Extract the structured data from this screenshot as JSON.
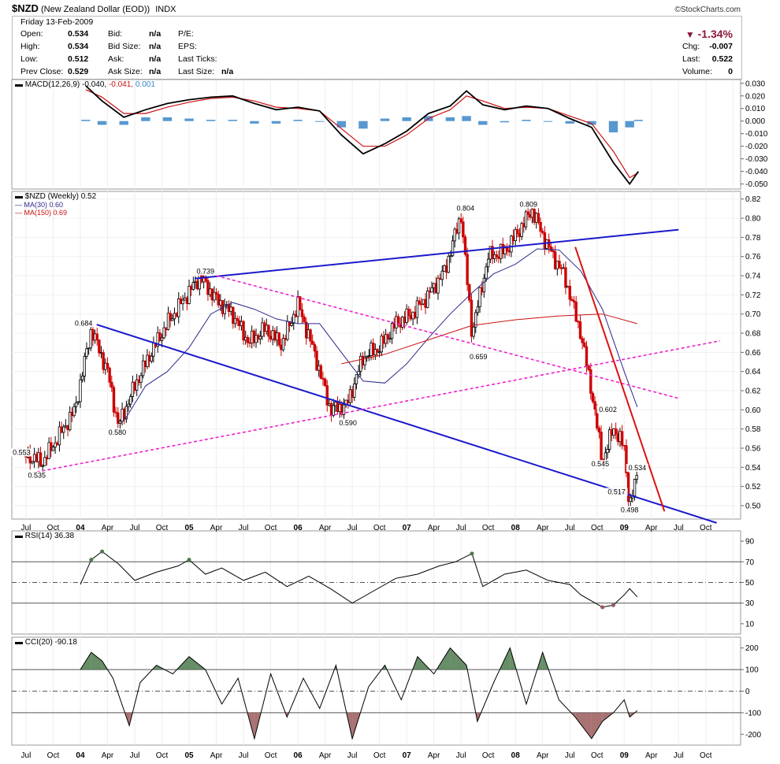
{
  "header": {
    "symbol": "$NZD",
    "name": "(New Zealand Dollar (EOD))",
    "exchange": "INDX",
    "brand": "©StockCharts.com",
    "date_line": "Friday   13-Feb-2009",
    "left_fields": [
      {
        "label": "Open:",
        "value": "0.534"
      },
      {
        "label": "High:",
        "value": "0.534"
      },
      {
        "label": "Low:",
        "value": "0.512"
      },
      {
        "label": "Prev Close:",
        "value": "0.529"
      }
    ],
    "mid_fields": [
      {
        "label": "Bid:",
        "value": "n/a"
      },
      {
        "label": "Bid Size:",
        "value": "n/a"
      },
      {
        "label": "Ask:",
        "value": "n/a"
      },
      {
        "label": "Ask Size:",
        "value": "n/a"
      }
    ],
    "right_labels": [
      "P/E:",
      "EPS:",
      "Last Ticks:",
      "Last Size:"
    ],
    "last_size_value": "n/a",
    "change_pct": "-1.34%",
    "chg_label": "Chg:",
    "chg_value": "-0.007",
    "last_label": "Last:",
    "last_value": "0.522",
    "volume_label": "Volume:",
    "volume_value": "0",
    "down_color": "#8b1a3a"
  },
  "chart_data": [
    {
      "type": "line",
      "panel": "MACD",
      "legend": {
        "name": "MACD(12,26,9)",
        "v1": "-0.040,",
        "v2": "-0.041,",
        "v3": "0.001"
      },
      "y_ticks": [
        "0.030",
        "0.020",
        "0.010",
        "0.000",
        "-0.010",
        "-0.020",
        "-0.030",
        "-0.040",
        "-0.050"
      ],
      "ylim": [
        -0.054,
        0.033
      ],
      "series": [
        {
          "x": [
            2004.05,
            2004.2,
            2004.4,
            2004.6,
            2004.8,
            2005.0,
            2005.2,
            2005.4,
            2005.6,
            2005.8,
            2006.0,
            2006.2,
            2006.4,
            2006.6,
            2006.8,
            2007.0,
            2007.2,
            2007.4,
            2007.55,
            2007.7,
            2007.9,
            2008.1,
            2008.3,
            2008.5,
            2008.7,
            2008.9,
            2009.05,
            2009.13
          ],
          "values": [
            0.028,
            0.016,
            0.003,
            0.009,
            0.014,
            0.017,
            0.019,
            0.02,
            0.014,
            0.009,
            0.011,
            0.008,
            -0.011,
            -0.026,
            -0.018,
            -0.008,
            0.006,
            0.012,
            0.024,
            0.013,
            0.009,
            0.012,
            0.01,
            0.002,
            -0.005,
            -0.033,
            -0.05,
            -0.04
          ]
        },
        {
          "x": [
            2004.05,
            2004.2,
            2004.4,
            2004.6,
            2004.8,
            2005.0,
            2005.2,
            2005.4,
            2005.6,
            2005.8,
            2006.0,
            2006.2,
            2006.4,
            2006.6,
            2006.8,
            2007.0,
            2007.2,
            2007.4,
            2007.55,
            2007.7,
            2007.9,
            2008.1,
            2008.3,
            2008.5,
            2008.7,
            2008.9,
            2009.05,
            2009.13
          ],
          "values": [
            0.025,
            0.019,
            0.006,
            0.006,
            0.011,
            0.015,
            0.018,
            0.019,
            0.016,
            0.011,
            0.01,
            0.008,
            -0.006,
            -0.02,
            -0.02,
            -0.011,
            0.002,
            0.009,
            0.02,
            0.016,
            0.01,
            0.011,
            0.01,
            0.004,
            -0.002,
            -0.024,
            -0.045,
            -0.041
          ]
        },
        {
          "x": [
            2004.05,
            2004.2,
            2004.4,
            2004.6,
            2004.8,
            2005.0,
            2005.2,
            2005.4,
            2005.6,
            2005.8,
            2006.0,
            2006.2,
            2006.4,
            2006.6,
            2006.8,
            2007.0,
            2007.2,
            2007.4,
            2007.55,
            2007.7,
            2007.9,
            2008.1,
            2008.3,
            2008.5,
            2008.7,
            2008.9,
            2009.05,
            2009.13
          ],
          "values": [
            0.001,
            -0.003,
            -0.003,
            0.003,
            0.003,
            0.002,
            0.001,
            0.001,
            -0.002,
            -0.002,
            0.001,
            0.0,
            -0.005,
            -0.006,
            0.002,
            0.003,
            0.004,
            0.003,
            0.004,
            -0.003,
            -0.001,
            0.001,
            0.0,
            -0.002,
            -0.003,
            -0.009,
            -0.005,
            0.001
          ]
        }
      ]
    },
    {
      "type": "line",
      "panel": "Price",
      "legend": {
        "name": "$NZD (Weekly) 0.52",
        "ma30": "MA(30) 0.60",
        "ma150": "MA(150) 0.69"
      },
      "y_ticks": [
        "0.82",
        "0.80",
        "0.78",
        "0.76",
        "0.74",
        "0.72",
        "0.70",
        "0.68",
        "0.66",
        "0.64",
        "0.62",
        "0.60",
        "0.58",
        "0.56",
        "0.54",
        "0.52",
        "0.50"
      ],
      "ylim": [
        0.486,
        0.828
      ],
      "series": [
        {
          "x": [
            2003.5,
            2003.65,
            2003.8,
            2003.95,
            2004.1,
            2004.25,
            2004.35,
            2004.5,
            2004.65,
            2004.8,
            2004.95,
            2005.1,
            2005.25,
            2005.4,
            2005.55,
            2005.7,
            2005.85,
            2006.0,
            2006.15,
            2006.3,
            2006.45,
            2006.6,
            2006.75,
            2006.9,
            2007.05,
            2007.2,
            2007.35,
            2007.5,
            2007.6,
            2007.75,
            2007.9,
            2008.05,
            2008.15,
            2008.3,
            2008.45,
            2008.6,
            2008.7,
            2008.8,
            2008.9,
            2009.0,
            2009.05,
            2009.12
          ],
          "values": [
            0.553,
            0.545,
            0.572,
            0.6,
            0.684,
            0.64,
            0.583,
            0.625,
            0.66,
            0.69,
            0.715,
            0.739,
            0.715,
            0.7,
            0.67,
            0.685,
            0.668,
            0.71,
            0.66,
            0.6,
            0.605,
            0.655,
            0.665,
            0.69,
            0.7,
            0.72,
            0.745,
            0.804,
            0.68,
            0.76,
            0.765,
            0.79,
            0.809,
            0.77,
            0.74,
            0.68,
            0.62,
            0.545,
            0.582,
            0.56,
            0.498,
            0.534
          ]
        },
        {
          "x": [
            2004.4,
            2004.6,
            2004.8,
            2005.0,
            2005.2,
            2005.4,
            2005.6,
            2005.8,
            2006.0,
            2006.2,
            2006.4,
            2006.6,
            2006.8,
            2007.0,
            2007.2,
            2007.4,
            2007.6,
            2007.8,
            2008.0,
            2008.2,
            2008.4,
            2008.6,
            2008.8,
            2009.0,
            2009.12
          ],
          "values": [
            0.588,
            0.625,
            0.64,
            0.665,
            0.7,
            0.712,
            0.705,
            0.695,
            0.69,
            0.69,
            0.66,
            0.63,
            0.628,
            0.648,
            0.675,
            0.7,
            0.722,
            0.742,
            0.752,
            0.768,
            0.767,
            0.745,
            0.705,
            0.64,
            0.603
          ]
        },
        {
          "x": [
            2006.4,
            2006.8,
            2007.2,
            2007.6,
            2008.0,
            2008.4,
            2008.8,
            2009.12
          ],
          "values": [
            0.648,
            0.658,
            0.673,
            0.688,
            0.694,
            0.698,
            0.7,
            0.69
          ]
        }
      ],
      "annotations": [
        "0.553",
        "0.535",
        "0.684",
        "0.580",
        "0.739",
        "0.590",
        "0.804",
        "0.659",
        "0.809",
        "0.602",
        "0.545",
        "0.534",
        "0.517",
        "0.498"
      ]
    },
    {
      "type": "line",
      "panel": "RSI",
      "legend": {
        "name": "RSI(14) 36.38"
      },
      "y_ticks": [
        "90",
        "70",
        "50",
        "30",
        "10"
      ],
      "ylim": [
        0,
        100
      ],
      "series": [
        {
          "x": [
            2004.0,
            2004.1,
            2004.2,
            2004.35,
            2004.5,
            2004.7,
            2004.9,
            2005.0,
            2005.15,
            2005.3,
            2005.5,
            2005.7,
            2005.9,
            2006.1,
            2006.3,
            2006.5,
            2006.7,
            2006.9,
            2007.1,
            2007.3,
            2007.45,
            2007.6,
            2007.7,
            2007.9,
            2008.1,
            2008.3,
            2008.5,
            2008.6,
            2008.7,
            2008.8,
            2008.9,
            2009.0,
            2009.05,
            2009.12
          ],
          "values": [
            48,
            72,
            80,
            68,
            52,
            60,
            66,
            72,
            58,
            64,
            52,
            60,
            46,
            56,
            44,
            30,
            42,
            54,
            58,
            66,
            70,
            78,
            46,
            58,
            62,
            52,
            48,
            38,
            32,
            26,
            28,
            38,
            44,
            36
          ]
        }
      ]
    },
    {
      "type": "line",
      "panel": "CCI",
      "legend": {
        "name": "CCI(20) -90.18"
      },
      "y_ticks": [
        "200",
        "100",
        "0",
        "-100",
        "-200"
      ],
      "ylim": [
        -250,
        250
      ],
      "series": [
        {
          "x": [
            2004.0,
            2004.1,
            2004.2,
            2004.3,
            2004.45,
            2004.55,
            2004.7,
            2004.85,
            2005.0,
            2005.15,
            2005.3,
            2005.45,
            2005.6,
            2005.75,
            2005.9,
            2006.05,
            2006.2,
            2006.35,
            2006.5,
            2006.65,
            2006.8,
            2006.95,
            2007.1,
            2007.25,
            2007.4,
            2007.55,
            2007.65,
            2007.8,
            2007.95,
            2008.1,
            2008.25,
            2008.4,
            2008.55,
            2008.7,
            2008.8,
            2008.9,
            2009.0,
            2009.05,
            2009.12
          ],
          "values": [
            100,
            180,
            140,
            60,
            -160,
            40,
            120,
            80,
            160,
            100,
            -60,
            60,
            -220,
            80,
            -120,
            60,
            -80,
            120,
            -220,
            20,
            120,
            -40,
            160,
            80,
            200,
            120,
            -140,
            40,
            200,
            -60,
            180,
            -40,
            -120,
            -220,
            -140,
            -100,
            -40,
            -120,
            -90
          ]
        }
      ]
    }
  ],
  "x_axis_labels": [
    "Jul",
    "Oct",
    "04",
    "Apr",
    "Jul",
    "Oct",
    "05",
    "Apr",
    "Jul",
    "Oct",
    "06",
    "Apr",
    "Jul",
    "Oct",
    "07",
    "Apr",
    "Jul",
    "Oct",
    "08",
    "Apr",
    "Jul",
    "Oct",
    "09",
    "Apr",
    "Jul",
    "Oct"
  ],
  "colors": {
    "ma30": "#2a2a8c",
    "ma150": "#cc1111",
    "trend_blue": "#1a1acc",
    "trend_pink": "#ee22cc",
    "trend_red": "#dd1111",
    "hist": "#3a86c8",
    "rsi_fill_green": "#4c7a4c",
    "cci_fill_red": "#9a5a5a"
  }
}
